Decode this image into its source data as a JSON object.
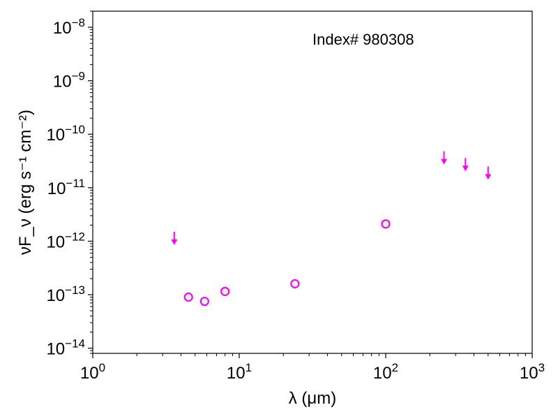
{
  "chart_data": {
    "type": "scatter",
    "title": "",
    "annotation": "Index# 980308",
    "xlabel": "λ (μm)",
    "ylabel": "νF_ν (erg s⁻¹ cm⁻²)",
    "xscale": "log",
    "yscale": "log",
    "xlim": [
      1,
      1000
    ],
    "ylim": [
      8e-15,
      2e-08
    ],
    "grid": false,
    "x_ticks": [
      1,
      10,
      100,
      1000
    ],
    "y_ticks": [
      1e-14,
      1e-13,
      1e-12,
      1e-11,
      1e-10,
      1e-09,
      1e-08
    ],
    "marker_color": "#ff00ff",
    "series": [
      {
        "marker": "open-circle",
        "x": [
          4.5,
          5.8,
          8.0,
          24,
          100
        ],
        "y": [
          9e-14,
          7.5e-14,
          1.15e-13,
          1.6e-13,
          2.1e-12
        ]
      },
      {
        "marker": "upper-limit-arrow",
        "x": [
          3.6,
          250,
          350,
          500
        ],
        "y": [
          1.5e-12,
          4.8e-11,
          3.6e-11,
          2.5e-11
        ]
      }
    ]
  }
}
